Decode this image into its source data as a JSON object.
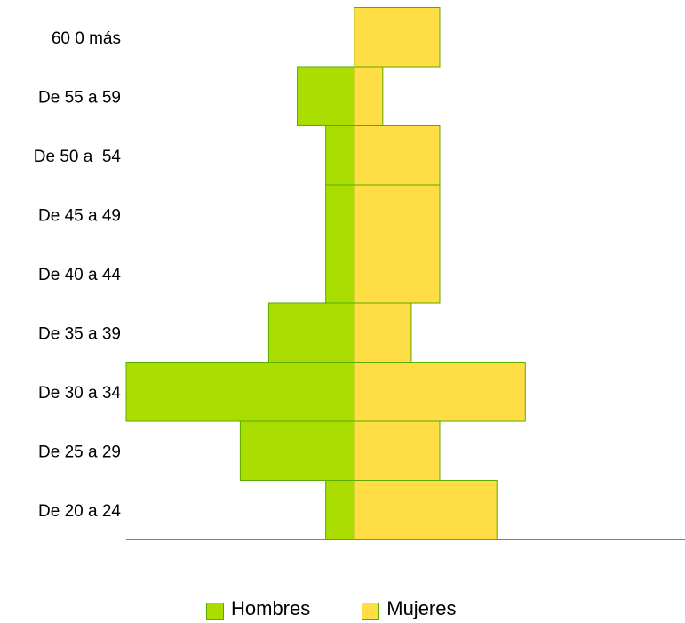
{
  "chart_data": {
    "type": "bar",
    "orientation": "horizontal-population-pyramid",
    "categories": [
      "De 20 a 24",
      "De 25 a 29",
      "De 30 a 34",
      "De 35 a 39",
      "De 40 a 44",
      "De 45 a 49",
      "De 50 a  54",
      "De 55 a 59",
      "60 0 más"
    ],
    "series": [
      {
        "name": "Hombres",
        "values": [
          1,
          4,
          8,
          3,
          1,
          1,
          1,
          2,
          0
        ],
        "color": "#aade00",
        "side": "left"
      },
      {
        "name": "Mujeres",
        "values": [
          5,
          3,
          6,
          2,
          3,
          3,
          3,
          1,
          3
        ],
        "color": "#ffdd44",
        "side": "right"
      }
    ],
    "xlim": [
      -8,
      11.6
    ],
    "edge_color": "#5aaa00",
    "grid": false,
    "legend_position": "bottom"
  }
}
